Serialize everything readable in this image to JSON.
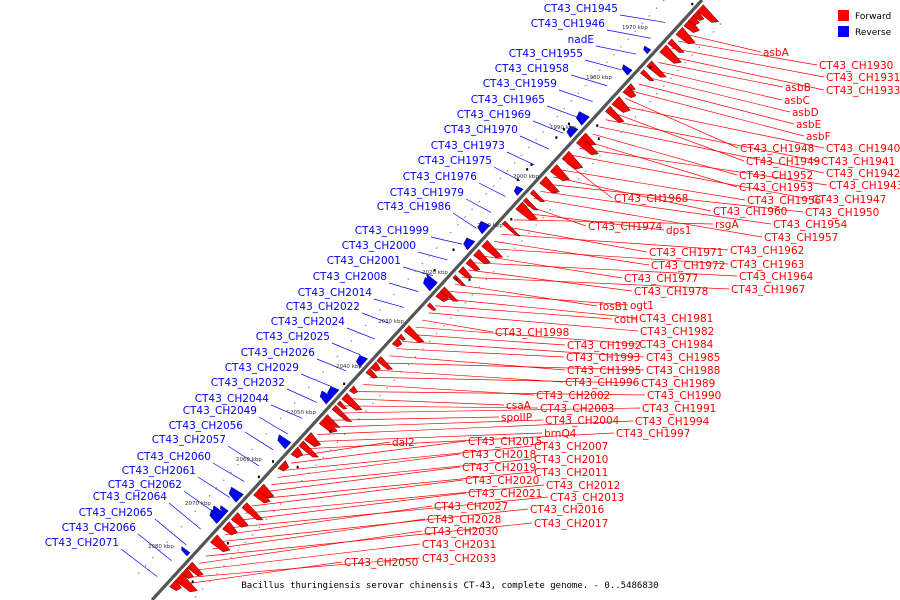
{
  "caption": "Bacillus thuringiensis serovar chinensis CT-43, complete genome. - 0..5486830",
  "legend": [
    {
      "label": "Forward",
      "color": "#ff0000"
    },
    {
      "label": "Reverse",
      "color": "#0000ff"
    }
  ],
  "axis_ticks": [
    "1970 kbp",
    "1980 kbp",
    "1990 kbp",
    "2000 kbp",
    "2010 kbp",
    "2020 kbp",
    "2030 kbp",
    "2040 kbp",
    "2050 kbp",
    "2060 kbp",
    "2070 kbp",
    "2080 kbp"
  ],
  "reverse_labels": [
    "CT43_CH1945",
    "CT43_CH1946",
    "nadE",
    "CT43_CH1955",
    "CT43_CH1958",
    "CT43_CH1959",
    "CT43_CH1965",
    "CT43_CH1969",
    "CT43_CH1970",
    "CT43_CH1973",
    "CT43_CH1975",
    "CT43_CH1976",
    "CT43_CH1979",
    "CT43_CH1986",
    "CT43_CH1999",
    "CT43_CH2000",
    "CT43_CH2001",
    "CT43_CH2008",
    "CT43_CH2014",
    "CT43_CH2022",
    "CT43_CH2024",
    "CT43_CH2025",
    "CT43_CH2026",
    "CT43_CH2029",
    "CT43_CH2032",
    "CT43_CH2044",
    "CT43_CH2049",
    "CT43_CH2056",
    "CT43_CH2057",
    "CT43_CH2060",
    "CT43_CH2061",
    "CT43_CH2062",
    "CT43_CH2064",
    "CT43_CH2065",
    "CT43_CH2066",
    "CT43_CH2071"
  ],
  "forward_labels": [
    "asbA",
    "CT43_CH1930",
    "CT43_CH1931",
    "CT43_CH1933",
    "asbB",
    "asbC",
    "asbD",
    "asbE",
    "asbF",
    "CT43_CH1948",
    "CT43_CH1940",
    "CT43_CH1949",
    "CT43_CH1941",
    "CT43_CH1942",
    "CT43_CH1952",
    "CT43_CH1953",
    "CT43_CH1943",
    "CT43_CH1947",
    "CT43_CH1968",
    "CT43_CH1956",
    "CT43_CH1960",
    "CT43_CH1950",
    "CT43_CH1954",
    "CT43_CH1957",
    "CT43_CH1974",
    "dps1",
    "rsgA",
    "CT43_CH1971",
    "CT43_CH1962",
    "CT43_CH1972",
    "CT43_CH1963",
    "CT43_CH1977",
    "CT43_CH1964",
    "CT43_CH1978",
    "CT43_CH1967",
    "fosB1",
    "ogt1",
    "CT43_CH1981",
    "cotH",
    "CT43_CH1982",
    "CT43_CH1998",
    "CT43_CH1984",
    "CT43_CH1992",
    "CT43_CH1985",
    "CT43_CH1993",
    "CT43_CH1995",
    "CT43_CH1988",
    "CT43_CH1996",
    "CT43_CH1989",
    "CT43_CH2002",
    "CT43_CH1990",
    "csaA",
    "CT43_CH2003",
    "CT43_CH1991",
    "spoIIP",
    "CT43_CH2004",
    "CT43_CH1994",
    "brnQ4",
    "CT43_CH1997",
    "dal2",
    "CT43_CH2015",
    "CT43_CH2007",
    "CT43_CH2018",
    "CT43_CH2010",
    "CT43_CH2019",
    "CT43_CH2011",
    "CT43_CH2020",
    "CT43_CH2012",
    "CT43_CH2021",
    "CT43_CH2013",
    "CT43_CH2027",
    "CT43_CH2016",
    "CT43_CH2028",
    "CT43_CH2017",
    "CT43_CH2030",
    "CT43_CH2031",
    "CT43_CH2033",
    "CT43_CH2050"
  ]
}
